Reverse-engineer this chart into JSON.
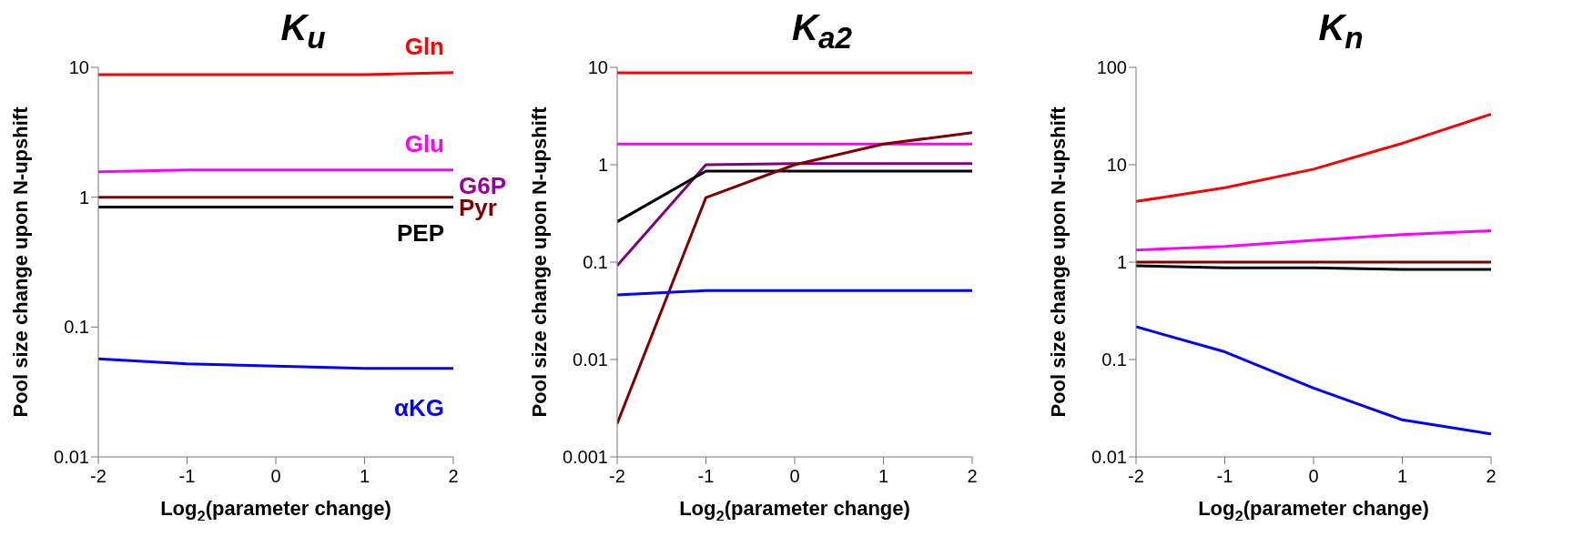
{
  "chart_data": [
    {
      "type": "line",
      "title": "K$_{u}$",
      "xlabel": "Log$_{2}$(parameter change)",
      "ylabel": "Pool size change upon N-upshift",
      "x": [
        -2,
        -1,
        0,
        1,
        2
      ],
      "xlim": [
        -2,
        2
      ],
      "xticks": [
        -2,
        -1,
        0,
        1,
        2
      ],
      "ylim": [
        0.01,
        10
      ],
      "yticks": [
        0.01,
        0.1,
        1,
        10
      ],
      "log": "y",
      "marker": "none",
      "line_style": "solid",
      "series": [
        {
          "name": "Gln",
          "color": "#ff0000",
          "values": [
            8.8,
            8.8,
            8.8,
            8.8,
            9.1
          ]
        },
        {
          "name": "Glu",
          "color": "#ff00ff",
          "values": [
            1.57,
            1.62,
            1.62,
            1.62,
            1.62
          ]
        },
        {
          "name": "G6P",
          "color": "#990099",
          "values": [
            null,
            null,
            null,
            null,
            null
          ]
        },
        {
          "name": "Pyr",
          "color": "#800000",
          "values": [
            1,
            1,
            1,
            1,
            1
          ]
        },
        {
          "name": "PEP",
          "color": "#000000",
          "values": [
            0.84,
            0.84,
            0.84,
            0.84,
            0.84
          ]
        },
        {
          "name": "αKG",
          "color": "#0000ff",
          "values": [
            0.057,
            0.052,
            0.05,
            0.048,
            0.048
          ]
        }
      ]
    },
    {
      "type": "line",
      "title": "K$_{a2}$",
      "xlabel": "Log$_{2}$(parameter change)",
      "ylabel": "Pool size change upon N-upshift",
      "x": [
        -2,
        -1,
        0,
        1,
        2
      ],
      "xlim": [
        -2,
        2
      ],
      "xticks": [
        -2,
        -1,
        0,
        1,
        2
      ],
      "ylim": [
        0.001,
        10
      ],
      "yticks": [
        0.001,
        0.01,
        0.1,
        1,
        10
      ],
      "log": "y",
      "marker": "none",
      "line_style": "solid",
      "series": [
        {
          "color": "#ff0000",
          "values": [
            8.8,
            8.8,
            8.8,
            8.8,
            8.8
          ]
        },
        {
          "color": "#ff00ff",
          "values": [
            1.63,
            1.63,
            1.63,
            1.63,
            1.63
          ]
        },
        {
          "color": "#800080",
          "values": [
            0.092,
            1.0,
            1.03,
            1.03,
            1.03
          ]
        },
        {
          "color": "#000000",
          "values": [
            0.26,
            0.86,
            0.86,
            0.86,
            0.86
          ]
        },
        {
          "color": "#800000",
          "values": [
            0.0022,
            0.46,
            1.0,
            1.63,
            2.14
          ]
        },
        {
          "color": "#0000ff",
          "values": [
            0.046,
            0.051,
            0.051,
            0.051,
            0.051
          ]
        }
      ]
    },
    {
      "type": "line",
      "title": "K$_{n}$",
      "xlabel": "Log$_{2}$(parameter change)",
      "ylabel": "Pool size change upon N-upshift",
      "x": [
        -2,
        -1,
        0,
        1,
        2
      ],
      "xlim": [
        -2,
        2
      ],
      "xticks": [
        -2,
        -1,
        0,
        1,
        2
      ],
      "ylim": [
        0.01,
        100
      ],
      "yticks": [
        0.01,
        0.1,
        1,
        10,
        100
      ],
      "log": "y",
      "marker": "none",
      "line_style": "solid",
      "series": [
        {
          "color": "#ff0000",
          "values": [
            4.2,
            5.8,
            9.0,
            16.6,
            33
          ]
        },
        {
          "color": "#ff00ff",
          "values": [
            1.33,
            1.45,
            1.68,
            1.92,
            2.1
          ]
        },
        {
          "color": "#000000",
          "values": [
            0.92,
            0.875,
            0.875,
            0.84,
            0.84
          ]
        },
        {
          "color": "#800000",
          "values": [
            1,
            1,
            1,
            1,
            1
          ]
        },
        {
          "color": "#0000ff",
          "values": [
            0.217,
            0.12,
            0.051,
            0.024,
            0.0172
          ]
        }
      ]
    }
  ]
}
